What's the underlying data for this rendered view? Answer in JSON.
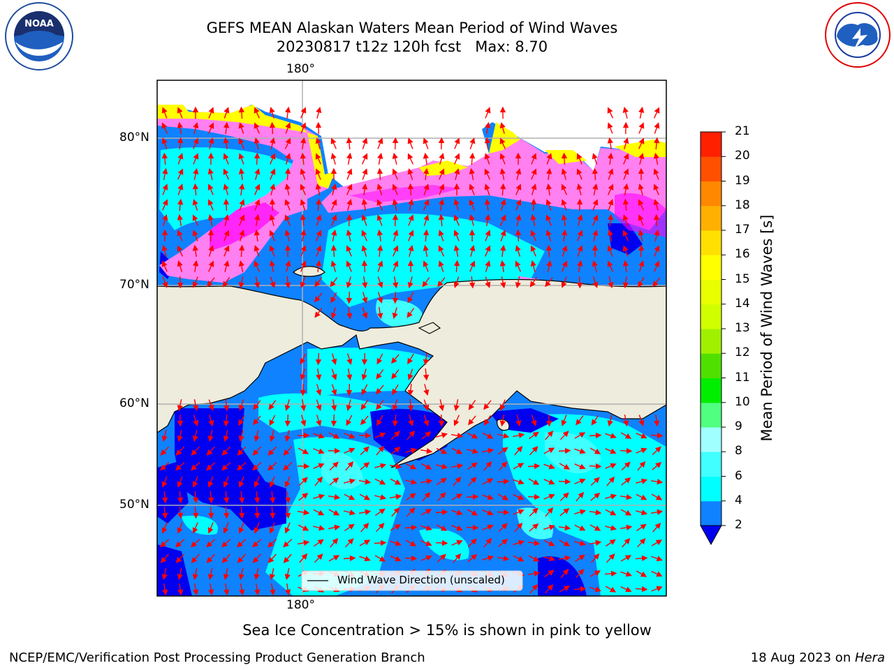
{
  "title": {
    "line1": "GEFS MEAN Alaskan Waters Mean Period of Wind Waves",
    "line2": "20230817 t12z 120h fcst   Max: 8.70"
  },
  "logos": {
    "left": "NOAA",
    "left_ring": "NATIONAL OCEANIC AND ATMOSPHERIC ADMINISTRATION · U.S. DEPARTMENT OF COMMERCE",
    "right_ring": "NATIONAL WEATHER SERVICE"
  },
  "map": {
    "lon_label_top": "180°",
    "lon_label_bottom": "180°",
    "lat_labels": [
      "80°N",
      "70°N",
      "60°N",
      "50°N"
    ],
    "legend_label": "Wind Wave Direction (unscaled)",
    "colors": {
      "land": "#eeecdc",
      "wave_2_4": "#0f82ff",
      "wave_lt2": "#0000f0",
      "wave_4_6": "#00ffff",
      "wave_6_8": "#40ffff",
      "ice_pink": "#ff80f0",
      "ice_magenta": "#ff00ff",
      "ice_yellow": "#ffff00",
      "arrow": "#ff0000",
      "grid": "#b0b0b0"
    }
  },
  "colorbar": {
    "label": "Mean Period of Wind Waves [s]",
    "ticks": [
      "2",
      "4",
      "6",
      "8",
      "9",
      "10",
      "11",
      "12",
      "13",
      "14",
      "15",
      "16",
      "17",
      "18",
      "19",
      "20",
      "21"
    ],
    "colors": [
      "#0f82ff",
      "#00ffff",
      "#40ffff",
      "#a0ffff",
      "#50ff80",
      "#00ee00",
      "#50e000",
      "#a0f000",
      "#d0ff00",
      "#e8ff00",
      "#ffff00",
      "#ffe000",
      "#ffb000",
      "#ff8800",
      "#ff5000",
      "#ff2000"
    ],
    "under_color": "#0000f0"
  },
  "note": "Sea Ice Concentration > 15% is shown in pink to yellow",
  "footer": {
    "left": "NCEP/EMC/Verification Post Processing Product Generation Branch",
    "right_date": "18 Aug 2023 on ",
    "right_host": "Hera"
  }
}
